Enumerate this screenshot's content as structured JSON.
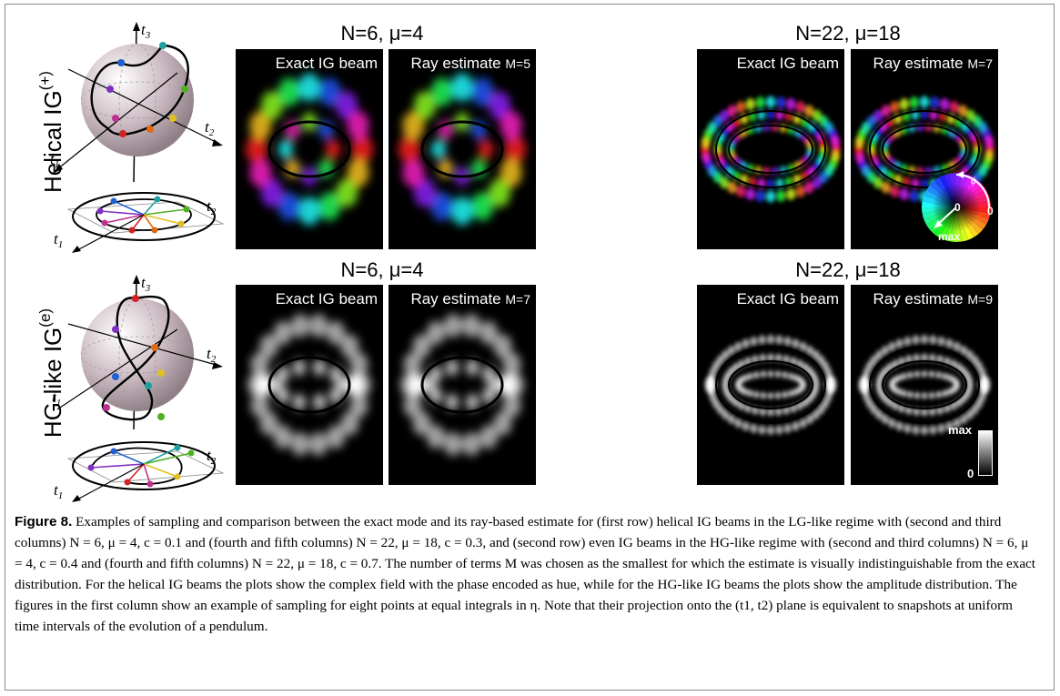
{
  "rows": [
    {
      "label_main": "Helical IG",
      "label_sup": "(+)",
      "groups": [
        {
          "title": "N=6, μ=4",
          "panels": [
            {
              "label": "Exact IG beam",
              "mterm": ""
            },
            {
              "label": "Ray estimate",
              "mterm": "M=5"
            }
          ]
        },
        {
          "title": "N=22, μ=18",
          "panels": [
            {
              "label": "Exact IG beam",
              "mterm": ""
            },
            {
              "label": "Ray estimate",
              "mterm": "M=7"
            }
          ]
        }
      ]
    },
    {
      "label_main": "HG-like IG",
      "label_sup": "(e)",
      "groups": [
        {
          "title": "N=6, μ=4",
          "panels": [
            {
              "label": "Exact IG beam",
              "mterm": ""
            },
            {
              "label": "Ray estimate",
              "mterm": "M=7"
            }
          ]
        },
        {
          "title": "N=22, μ=18",
          "panels": [
            {
              "label": "Exact IG beam",
              "mterm": ""
            },
            {
              "label": "Ray estimate",
              "mterm": "M=9"
            }
          ]
        }
      ]
    }
  ],
  "axis_labels": {
    "t1": "t",
    "t1_sub": "1",
    "t2": "t",
    "t2_sub": "2",
    "t3": "t",
    "t3_sub": "3"
  },
  "colorwheel": {
    "phase": "ϕ",
    "zero_angle": "0",
    "zero_center": "0",
    "max": "max"
  },
  "scalebar": {
    "max": "max",
    "zero": "0"
  },
  "caption": {
    "fig": "Figure 8.",
    "text": "Examples of sampling and comparison between the exact mode and its ray-based estimate for (first row) helical IG beams in the LG-like regime with (second and third columns) N = 6, μ = 4, c = 0.1 and (fourth and fifth columns) N = 22, μ = 18, c = 0.3, and (second row) even IG beams in the HG-like regime with (second and third columns) N = 6, μ = 4, c = 0.4 and (fourth and fifth columns) N = 22, μ = 18, c = 0.7. The number of terms M was chosen as the smallest for which the estimate is visually indistinguishable from the exact distribution. For the helical IG beams the plots show the complex field with the phase encoded as hue, while for the HG-like IG beams the plots show the amplitude distribution. The figures in the first column show an example of sampling for eight points at equal integrals in η. Note that their projection onto the (t1, t2) plane is equivalent to snapshots at uniform time intervals of the evolution of a pendulum."
  },
  "colors": {
    "sample_points": [
      "#d32020",
      "#e06a10",
      "#e0c020",
      "#50b020",
      "#20a0a0",
      "#2060d0",
      "#8030c0",
      "#c03090"
    ],
    "panel_background": "#000000",
    "sphere": "#c9b7bf"
  }
}
